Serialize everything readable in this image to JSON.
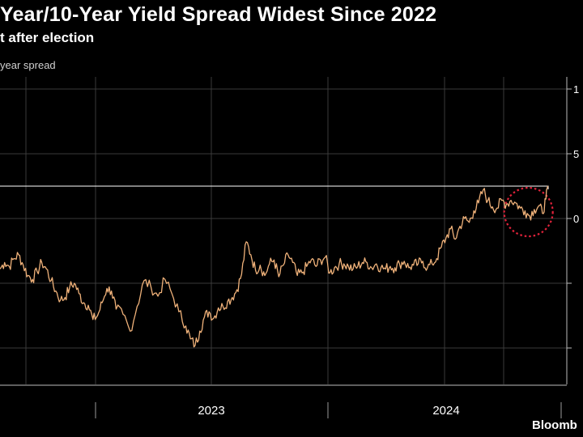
{
  "header": {
    "title": "Year/10-Year Yield Spread Widest Since 2022",
    "subtitle": "t after election",
    "ylabel": "year spread"
  },
  "source": {
    "label": "Bloomb"
  },
  "colors": {
    "background": "#000000",
    "series": "#f0b27a",
    "grid": "#3a3a3a",
    "annotation": "#e0223a",
    "reference_line": "#ffffff"
  },
  "chart_data": {
    "type": "line",
    "title": "Year/10-Year Yield Spread Widest Since 2022",
    "ylabel": "year spread",
    "xlabel": "",
    "x_tick_labels": [
      "2023",
      "2024"
    ],
    "y_tick_labels": [
      "1",
      "5",
      "0"
    ],
    "ylim": [
      -105,
      105
    ],
    "grid": true,
    "series": [
      {
        "name": "",
        "points": [
          [
            2022.0,
            -39
          ],
          [
            2022.02,
            -34
          ],
          [
            2022.04,
            -37
          ],
          [
            2022.06,
            -31
          ],
          [
            2022.08,
            -28
          ],
          [
            2022.1,
            -36
          ],
          [
            2022.12,
            -44
          ],
          [
            2022.14,
            -47
          ],
          [
            2022.16,
            -41
          ],
          [
            2022.18,
            -34
          ],
          [
            2022.2,
            -39
          ],
          [
            2022.22,
            -48
          ],
          [
            2022.24,
            -56
          ],
          [
            2022.26,
            -63
          ],
          [
            2022.28,
            -61
          ],
          [
            2022.3,
            -53
          ],
          [
            2022.32,
            -50
          ],
          [
            2022.34,
            -58
          ],
          [
            2022.36,
            -65
          ],
          [
            2022.38,
            -67
          ],
          [
            2022.4,
            -78
          ],
          [
            2022.42,
            -75
          ],
          [
            2022.44,
            -65
          ],
          [
            2022.46,
            -54
          ],
          [
            2022.48,
            -56
          ],
          [
            2022.5,
            -70
          ],
          [
            2022.53,
            -74
          ],
          [
            2022.56,
            -87
          ],
          [
            2022.59,
            -68
          ],
          [
            2022.62,
            -48
          ],
          [
            2022.65,
            -53
          ],
          [
            2022.68,
            -60
          ],
          [
            2022.71,
            -47
          ],
          [
            2022.74,
            -58
          ],
          [
            2022.77,
            -72
          ],
          [
            2022.8,
            -83
          ],
          [
            2022.82,
            -93
          ],
          [
            2022.84,
            -98
          ],
          [
            2022.86,
            -87
          ],
          [
            2022.88,
            -76
          ],
          [
            2022.9,
            -72
          ],
          [
            2022.92,
            -77
          ],
          [
            2022.94,
            -69
          ],
          [
            2022.96,
            -68
          ],
          [
            2022.98,
            -64
          ],
          [
            2023.0,
            -61
          ],
          [
            2023.02,
            -55
          ],
          [
            2023.04,
            -43
          ],
          [
            2023.06,
            -18
          ],
          [
            2023.08,
            -28
          ],
          [
            2023.1,
            -40
          ],
          [
            2023.12,
            -36
          ],
          [
            2023.14,
            -44
          ],
          [
            2023.16,
            -35
          ],
          [
            2023.18,
            -32
          ],
          [
            2023.2,
            -45
          ],
          [
            2023.22,
            -36
          ],
          [
            2023.24,
            -28
          ],
          [
            2023.26,
            -34
          ],
          [
            2023.28,
            -44
          ],
          [
            2023.3,
            -42
          ],
          [
            2023.32,
            -37
          ],
          [
            2023.34,
            -32
          ],
          [
            2023.36,
            -37
          ],
          [
            2023.38,
            -32
          ],
          [
            2023.4,
            -30
          ],
          [
            2023.42,
            -42
          ],
          [
            2023.44,
            -38
          ],
          [
            2023.46,
            -35
          ],
          [
            2023.48,
            -35
          ],
          [
            2023.5,
            -37
          ],
          [
            2023.52,
            -39
          ],
          [
            2023.54,
            -37
          ],
          [
            2023.56,
            -34
          ],
          [
            2023.58,
            -34
          ],
          [
            2023.6,
            -38
          ],
          [
            2023.62,
            -35
          ],
          [
            2023.64,
            -38
          ],
          [
            2023.66,
            -39
          ],
          [
            2023.68,
            -37
          ],
          [
            2023.7,
            -38
          ],
          [
            2023.72,
            -35
          ],
          [
            2023.74,
            -33
          ],
          [
            2023.76,
            -38
          ],
          [
            2023.78,
            -36
          ],
          [
            2023.8,
            -35
          ],
          [
            2023.82,
            -33
          ],
          [
            2023.84,
            -38
          ],
          [
            2023.86,
            -35
          ],
          [
            2023.88,
            -31
          ],
          [
            2023.9,
            -22
          ],
          [
            2023.92,
            -15
          ],
          [
            2023.94,
            -8
          ],
          [
            2023.96,
            -16
          ],
          [
            2023.98,
            -6
          ],
          [
            2024.0,
            0
          ],
          [
            2024.02,
            -3
          ],
          [
            2024.04,
            6
          ],
          [
            2024.06,
            12
          ],
          [
            2024.08,
            22
          ],
          [
            2024.1,
            14
          ],
          [
            2024.12,
            9
          ],
          [
            2024.14,
            8
          ],
          [
            2024.16,
            14
          ],
          [
            2024.18,
            11
          ],
          [
            2024.2,
            14
          ],
          [
            2024.22,
            12
          ],
          [
            2024.24,
            8
          ],
          [
            2024.26,
            6
          ],
          [
            2024.28,
            2
          ],
          [
            2024.3,
            7
          ],
          [
            2024.32,
            10
          ],
          [
            2024.335,
            4
          ],
          [
            2024.35,
            15
          ],
          [
            2024.36,
            25
          ]
        ]
      }
    ],
    "annotations": [
      {
        "type": "reference_line",
        "y": 25
      },
      {
        "type": "dashed_circle",
        "x": 2024.275,
        "y": 5
      }
    ]
  }
}
